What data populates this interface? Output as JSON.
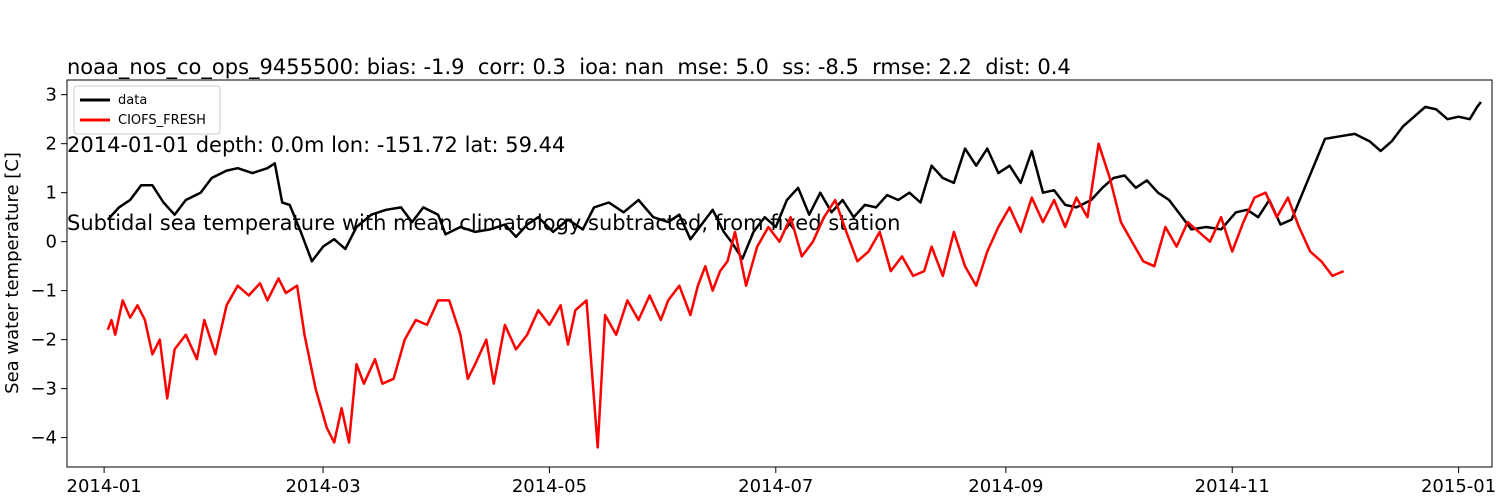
{
  "title_lines": [
    "noaa_nos_co_ops_9455500: bias: -1.9  corr: 0.3  ioa: nan  mse: 5.0  ss: -8.5  rmse: 2.2  dist: 0.4",
    "2014-01-01 depth: 0.0m lon: -151.72 lat: 59.44",
    "Subtidal sea temperature with mean climatology subtracted, from fixed station"
  ],
  "chart_data": {
    "type": "line",
    "title": "noaa_nos_co_ops_9455500: bias: -1.9  corr: 0.3  ioa: nan  mse: 5.0  ss: -8.5  rmse: 2.2  dist: 0.4",
    "xlabel": "",
    "ylabel": "Sea water temperature [C]",
    "xlim": [
      "2013-12-22",
      "2015-01-10"
    ],
    "ylim": [
      -4.6,
      3.3
    ],
    "xticks": [
      "2014-01",
      "2014-03",
      "2014-05",
      "2014-07",
      "2014-09",
      "2014-11",
      "2015-01"
    ],
    "yticks": [
      -4,
      -3,
      -2,
      -1,
      0,
      1,
      2,
      3
    ],
    "legend": "top-left",
    "grid": false,
    "series": [
      {
        "name": "data",
        "color": "#000000",
        "points": [
          [
            "2014-01-02",
            0.45
          ],
          [
            "2014-01-05",
            0.7
          ],
          [
            "2014-01-08",
            0.85
          ],
          [
            "2014-01-11",
            1.15
          ],
          [
            "2014-01-14",
            1.15
          ],
          [
            "2014-01-17",
            0.8
          ],
          [
            "2014-01-20",
            0.55
          ],
          [
            "2014-01-23",
            0.85
          ],
          [
            "2014-01-27",
            1.0
          ],
          [
            "2014-01-30",
            1.3
          ],
          [
            "2014-02-03",
            1.45
          ],
          [
            "2014-02-06",
            1.5
          ],
          [
            "2014-02-10",
            1.4
          ],
          [
            "2014-02-14",
            1.5
          ],
          [
            "2014-02-16",
            1.6
          ],
          [
            "2014-02-18",
            0.8
          ],
          [
            "2014-02-20",
            0.75
          ],
          [
            "2014-02-23",
            0.2
          ],
          [
            "2014-02-26",
            -0.4
          ],
          [
            "2014-03-01",
            -0.1
          ],
          [
            "2014-03-04",
            0.05
          ],
          [
            "2014-03-07",
            -0.15
          ],
          [
            "2014-03-10",
            0.3
          ],
          [
            "2014-03-14",
            0.55
          ],
          [
            "2014-03-18",
            0.65
          ],
          [
            "2014-03-22",
            0.7
          ],
          [
            "2014-03-25",
            0.4
          ],
          [
            "2014-03-28",
            0.7
          ],
          [
            "2014-04-01",
            0.55
          ],
          [
            "2014-04-03",
            0.15
          ],
          [
            "2014-04-07",
            0.3
          ],
          [
            "2014-04-11",
            0.2
          ],
          [
            "2014-04-15",
            0.25
          ],
          [
            "2014-04-19",
            0.35
          ],
          [
            "2014-04-22",
            0.1
          ],
          [
            "2014-04-25",
            0.35
          ],
          [
            "2014-04-28",
            0.5
          ],
          [
            "2014-05-02",
            0.2
          ],
          [
            "2014-05-06",
            0.45
          ],
          [
            "2014-05-10",
            0.25
          ],
          [
            "2014-05-13",
            0.7
          ],
          [
            "2014-05-17",
            0.8
          ],
          [
            "2014-05-21",
            0.6
          ],
          [
            "2014-05-25",
            0.85
          ],
          [
            "2014-05-29",
            0.5
          ],
          [
            "2014-06-02",
            0.4
          ],
          [
            "2014-06-05",
            0.55
          ],
          [
            "2014-06-08",
            0.05
          ],
          [
            "2014-06-11",
            0.35
          ],
          [
            "2014-06-14",
            0.65
          ],
          [
            "2014-06-17",
            0.2
          ],
          [
            "2014-06-19",
            0.0
          ],
          [
            "2014-06-22",
            -0.35
          ],
          [
            "2014-06-25",
            0.2
          ],
          [
            "2014-06-28",
            0.5
          ],
          [
            "2014-07-01",
            0.3
          ],
          [
            "2014-07-04",
            0.85
          ],
          [
            "2014-07-07",
            1.1
          ],
          [
            "2014-07-10",
            0.55
          ],
          [
            "2014-07-13",
            1.0
          ],
          [
            "2014-07-16",
            0.6
          ],
          [
            "2014-07-19",
            0.85
          ],
          [
            "2014-07-22",
            0.5
          ],
          [
            "2014-07-25",
            0.75
          ],
          [
            "2014-07-28",
            0.7
          ],
          [
            "2014-07-31",
            0.95
          ],
          [
            "2014-08-03",
            0.85
          ],
          [
            "2014-08-06",
            1.0
          ],
          [
            "2014-08-09",
            0.8
          ],
          [
            "2014-08-12",
            1.55
          ],
          [
            "2014-08-15",
            1.3
          ],
          [
            "2014-08-18",
            1.2
          ],
          [
            "2014-08-21",
            1.9
          ],
          [
            "2014-08-24",
            1.55
          ],
          [
            "2014-08-27",
            1.9
          ],
          [
            "2014-08-30",
            1.4
          ],
          [
            "2014-09-02",
            1.55
          ],
          [
            "2014-09-05",
            1.2
          ],
          [
            "2014-09-08",
            1.85
          ],
          [
            "2014-09-11",
            1.0
          ],
          [
            "2014-09-14",
            1.05
          ],
          [
            "2014-09-17",
            0.75
          ],
          [
            "2014-09-20",
            0.7
          ],
          [
            "2014-09-24",
            0.85
          ],
          [
            "2014-09-27",
            1.1
          ],
          [
            "2014-09-30",
            1.3
          ],
          [
            "2014-10-03",
            1.35
          ],
          [
            "2014-10-06",
            1.1
          ],
          [
            "2014-10-09",
            1.25
          ],
          [
            "2014-10-12",
            1.0
          ],
          [
            "2014-10-15",
            0.85
          ],
          [
            "2014-10-18",
            0.55
          ],
          [
            "2014-10-21",
            0.25
          ],
          [
            "2014-10-25",
            0.3
          ],
          [
            "2014-10-29",
            0.25
          ],
          [
            "2014-11-02",
            0.6
          ],
          [
            "2014-11-05",
            0.65
          ],
          [
            "2014-11-08",
            0.5
          ],
          [
            "2014-11-11",
            0.85
          ],
          [
            "2014-11-14",
            0.35
          ],
          [
            "2014-11-17",
            0.45
          ],
          [
            "2014-11-20",
            1.0
          ],
          [
            "2014-11-23",
            1.55
          ],
          [
            "2014-11-26",
            2.1
          ],
          [
            "2014-11-30",
            2.15
          ],
          [
            "2014-12-04",
            2.2
          ],
          [
            "2014-12-08",
            2.05
          ],
          [
            "2014-12-11",
            1.85
          ],
          [
            "2014-12-14",
            2.05
          ],
          [
            "2014-12-17",
            2.35
          ],
          [
            "2014-12-20",
            2.55
          ],
          [
            "2014-12-23",
            2.75
          ],
          [
            "2014-12-26",
            2.7
          ],
          [
            "2014-12-29",
            2.5
          ],
          [
            "2015-01-01",
            2.55
          ],
          [
            "2015-01-04",
            2.5
          ],
          [
            "2015-01-06",
            2.75
          ],
          [
            "2015-01-07",
            2.85
          ]
        ]
      },
      {
        "name": "CIOFS_FRESH",
        "color": "#ff0000",
        "points": [
          [
            "2014-01-02",
            -1.8
          ],
          [
            "2014-01-03",
            -1.6
          ],
          [
            "2014-01-04",
            -1.9
          ],
          [
            "2014-01-06",
            -1.2
          ],
          [
            "2014-01-08",
            -1.55
          ],
          [
            "2014-01-10",
            -1.3
          ],
          [
            "2014-01-12",
            -1.6
          ],
          [
            "2014-01-14",
            -2.3
          ],
          [
            "2014-01-16",
            -2.0
          ],
          [
            "2014-01-18",
            -3.2
          ],
          [
            "2014-01-20",
            -2.2
          ],
          [
            "2014-01-23",
            -1.9
          ],
          [
            "2014-01-26",
            -2.4
          ],
          [
            "2014-01-28",
            -1.6
          ],
          [
            "2014-01-31",
            -2.3
          ],
          [
            "2014-02-03",
            -1.3
          ],
          [
            "2014-02-06",
            -0.9
          ],
          [
            "2014-02-09",
            -1.1
          ],
          [
            "2014-02-12",
            -0.85
          ],
          [
            "2014-02-14",
            -1.2
          ],
          [
            "2014-02-17",
            -0.75
          ],
          [
            "2014-02-19",
            -1.05
          ],
          [
            "2014-02-22",
            -0.9
          ],
          [
            "2014-02-24",
            -1.9
          ],
          [
            "2014-02-27",
            -3.0
          ],
          [
            "2014-03-02",
            -3.8
          ],
          [
            "2014-03-04",
            -4.1
          ],
          [
            "2014-03-06",
            -3.4
          ],
          [
            "2014-03-08",
            -4.1
          ],
          [
            "2014-03-10",
            -2.5
          ],
          [
            "2014-03-12",
            -2.9
          ],
          [
            "2014-03-15",
            -2.4
          ],
          [
            "2014-03-17",
            -2.9
          ],
          [
            "2014-03-20",
            -2.8
          ],
          [
            "2014-03-23",
            -2.0
          ],
          [
            "2014-03-26",
            -1.6
          ],
          [
            "2014-03-29",
            -1.7
          ],
          [
            "2014-04-01",
            -1.2
          ],
          [
            "2014-04-04",
            -1.2
          ],
          [
            "2014-04-07",
            -1.9
          ],
          [
            "2014-04-09",
            -2.8
          ],
          [
            "2014-04-11",
            -2.5
          ],
          [
            "2014-04-14",
            -2.0
          ],
          [
            "2014-04-16",
            -2.9
          ],
          [
            "2014-04-19",
            -1.7
          ],
          [
            "2014-04-22",
            -2.2
          ],
          [
            "2014-04-25",
            -1.9
          ],
          [
            "2014-04-28",
            -1.4
          ],
          [
            "2014-05-01",
            -1.7
          ],
          [
            "2014-05-04",
            -1.3
          ],
          [
            "2014-05-06",
            -2.1
          ],
          [
            "2014-05-08",
            -1.4
          ],
          [
            "2014-05-11",
            -1.2
          ],
          [
            "2014-05-14",
            -4.2
          ],
          [
            "2014-05-16",
            -1.5
          ],
          [
            "2014-05-19",
            -1.9
          ],
          [
            "2014-05-22",
            -1.2
          ],
          [
            "2014-05-25",
            -1.6
          ],
          [
            "2014-05-28",
            -1.1
          ],
          [
            "2014-05-31",
            -1.6
          ],
          [
            "2014-06-02",
            -1.2
          ],
          [
            "2014-06-05",
            -0.9
          ],
          [
            "2014-06-08",
            -1.5
          ],
          [
            "2014-06-10",
            -0.9
          ],
          [
            "2014-06-12",
            -0.5
          ],
          [
            "2014-06-14",
            -1.0
          ],
          [
            "2014-06-16",
            -0.6
          ],
          [
            "2014-06-18",
            -0.4
          ],
          [
            "2014-06-20",
            0.2
          ],
          [
            "2014-06-23",
            -0.9
          ],
          [
            "2014-06-26",
            -0.1
          ],
          [
            "2014-06-29",
            0.3
          ],
          [
            "2014-07-02",
            0.0
          ],
          [
            "2014-07-05",
            0.5
          ],
          [
            "2014-07-08",
            -0.3
          ],
          [
            "2014-07-11",
            0.0
          ],
          [
            "2014-07-14",
            0.5
          ],
          [
            "2014-07-17",
            0.85
          ],
          [
            "2014-07-20",
            0.2
          ],
          [
            "2014-07-23",
            -0.4
          ],
          [
            "2014-07-26",
            -0.2
          ],
          [
            "2014-07-29",
            0.2
          ],
          [
            "2014-08-01",
            -0.6
          ],
          [
            "2014-08-04",
            -0.3
          ],
          [
            "2014-08-07",
            -0.7
          ],
          [
            "2014-08-10",
            -0.6
          ],
          [
            "2014-08-12",
            -0.1
          ],
          [
            "2014-08-15",
            -0.7
          ],
          [
            "2014-08-18",
            0.2
          ],
          [
            "2014-08-21",
            -0.5
          ],
          [
            "2014-08-24",
            -0.9
          ],
          [
            "2014-08-27",
            -0.2
          ],
          [
            "2014-08-30",
            0.3
          ],
          [
            "2014-09-02",
            0.7
          ],
          [
            "2014-09-05",
            0.2
          ],
          [
            "2014-09-08",
            0.9
          ],
          [
            "2014-09-11",
            0.4
          ],
          [
            "2014-09-14",
            0.85
          ],
          [
            "2014-09-17",
            0.3
          ],
          [
            "2014-09-20",
            0.9
          ],
          [
            "2014-09-23",
            0.5
          ],
          [
            "2014-09-26",
            2.0
          ],
          [
            "2014-09-29",
            1.3
          ],
          [
            "2014-10-02",
            0.4
          ],
          [
            "2014-10-05",
            0.0
          ],
          [
            "2014-10-08",
            -0.4
          ],
          [
            "2014-10-11",
            -0.5
          ],
          [
            "2014-10-14",
            0.3
          ],
          [
            "2014-10-17",
            -0.1
          ],
          [
            "2014-10-20",
            0.4
          ],
          [
            "2014-10-23",
            0.2
          ],
          [
            "2014-10-26",
            0.0
          ],
          [
            "2014-10-29",
            0.5
          ],
          [
            "2014-11-01",
            -0.2
          ],
          [
            "2014-11-04",
            0.4
          ],
          [
            "2014-11-07",
            0.9
          ],
          [
            "2014-11-10",
            1.0
          ],
          [
            "2014-11-13",
            0.5
          ],
          [
            "2014-11-16",
            0.9
          ],
          [
            "2014-11-19",
            0.3
          ],
          [
            "2014-11-22",
            -0.2
          ],
          [
            "2014-11-25",
            -0.4
          ],
          [
            "2014-11-28",
            -0.7
          ],
          [
            "2014-12-01",
            -0.6
          ]
        ]
      }
    ]
  },
  "legend": {
    "items": [
      {
        "label": "data",
        "color": "#000000"
      },
      {
        "label": "CIOFS_FRESH",
        "color": "#ff0000"
      }
    ]
  }
}
